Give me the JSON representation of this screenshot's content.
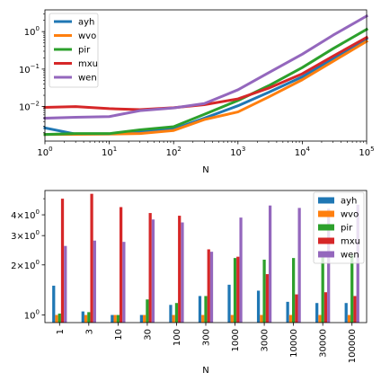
{
  "chart_data": [
    {
      "type": "line",
      "xlabel": "N",
      "ylabel": "",
      "xscale": "log",
      "yscale": "log",
      "xlim": [
        1,
        100000
      ],
      "ylim": [
        0.0012,
        3.8
      ],
      "grid": false,
      "legend": "upper-left",
      "x": [
        1,
        3,
        10,
        30,
        100,
        300,
        1000,
        3000,
        10000,
        30000,
        100000
      ],
      "xtick_labels": [
        "10^0",
        "10^1",
        "10^2",
        "10^3",
        "10^4",
        "10^5"
      ],
      "ytick_labels": [
        "10^-2",
        "10^-1",
        "10^0"
      ],
      "series": [
        {
          "name": "ayh",
          "color": "#1f77b4",
          "values": [
            0.0027,
            0.00185,
            0.00185,
            0.0021,
            0.0025,
            0.0049,
            0.0105,
            0.024,
            0.062,
            0.19,
            0.65
          ]
        },
        {
          "name": "wvo",
          "color": "#ff7f0e",
          "values": [
            0.0018,
            0.00182,
            0.00185,
            0.0019,
            0.0023,
            0.0045,
            0.0072,
            0.018,
            0.052,
            0.16,
            0.55
          ]
        },
        {
          "name": "pir",
          "color": "#2ca02c",
          "values": [
            0.0018,
            0.0019,
            0.0019,
            0.0024,
            0.0029,
            0.0062,
            0.0145,
            0.036,
            0.11,
            0.35,
            1.15
          ]
        },
        {
          "name": "mxu",
          "color": "#d62728",
          "values": [
            0.0095,
            0.01,
            0.0088,
            0.0083,
            0.0093,
            0.0112,
            0.016,
            0.031,
            0.075,
            0.22,
            0.7
          ]
        },
        {
          "name": "wen",
          "color": "#9467bd",
          "values": [
            0.0049,
            0.0052,
            0.0054,
            0.0078,
            0.0092,
            0.012,
            0.028,
            0.08,
            0.25,
            0.8,
            2.6
          ]
        }
      ]
    },
    {
      "type": "bar",
      "xlabel": "N",
      "ylabel": "",
      "yscale": "log",
      "ylim": [
        0.9,
        5.6
      ],
      "grid": false,
      "legend": "upper-right",
      "categories": [
        "1",
        "3",
        "10",
        "30",
        "100",
        "300",
        "1000",
        "3000",
        "10000",
        "30000",
        "100000"
      ],
      "ytick_labels": [
        "10^0",
        "2×10^0",
        "3×10^0",
        "4×10^0"
      ],
      "series": [
        {
          "name": "ayh",
          "color": "#1f77b4",
          "values": [
            1.5,
            1.05,
            1.0,
            1.0,
            1.15,
            1.3,
            1.52,
            1.4,
            1.2,
            1.18,
            1.18
          ]
        },
        {
          "name": "wvo",
          "color": "#ff7f0e",
          "values": [
            1.0,
            1.0,
            1.0,
            1.0,
            1.0,
            1.0,
            1.0,
            1.0,
            1.0,
            1.0,
            1.0
          ]
        },
        {
          "name": "pir",
          "color": "#2ca02c",
          "values": [
            1.02,
            1.04,
            1.0,
            1.24,
            1.18,
            1.3,
            2.2,
            2.15,
            2.2,
            2.3,
            2.3
          ]
        },
        {
          "name": "mxu",
          "color": "#d62728",
          "values": [
            5.0,
            5.35,
            4.45,
            4.1,
            3.95,
            2.48,
            2.24,
            1.76,
            1.33,
            1.37,
            1.3
          ]
        },
        {
          "name": "wen",
          "color": "#9467bd",
          "values": [
            2.6,
            2.8,
            2.75,
            3.75,
            3.6,
            2.4,
            3.85,
            4.55,
            4.4,
            4.35,
            4.6
          ]
        }
      ]
    }
  ]
}
